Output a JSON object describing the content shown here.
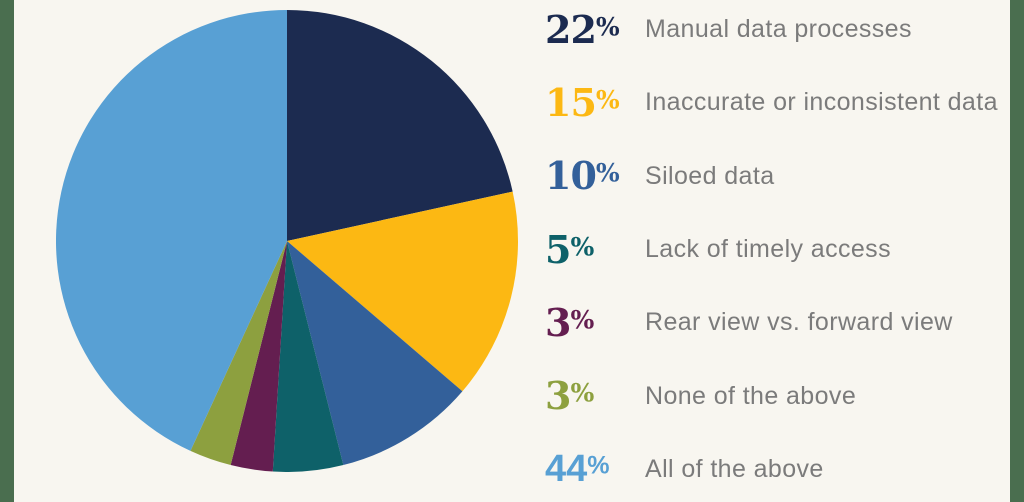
{
  "chart_data": {
    "type": "pie",
    "title": "",
    "start_angle_deg": 0,
    "direction": "clockwise",
    "legend_position": "right",
    "slices": [
      {
        "value": 22,
        "pct_number": "22",
        "pct_sign": "%",
        "label": "Manual data processes",
        "color": "#1C2B50",
        "pct_style": "oldstyle"
      },
      {
        "value": 15,
        "pct_number": "15",
        "pct_sign": "%",
        "label": "Inaccurate or inconsistent data",
        "color": "#FCB813",
        "pct_style": "oldstyle"
      },
      {
        "value": 10,
        "pct_number": "10",
        "pct_sign": "%",
        "label": "Siloed data",
        "color": "#33609A",
        "pct_style": "oldstyle"
      },
      {
        "value": 5,
        "pct_number": "5",
        "pct_sign": "%",
        "label": "Lack of timely access",
        "color": "#0E6169",
        "pct_style": "oldstyle"
      },
      {
        "value": 3,
        "pct_number": "3",
        "pct_sign": "%",
        "label": "Rear view vs. forward view",
        "color": "#641E50",
        "pct_style": "oldstyle"
      },
      {
        "value": 3,
        "pct_number": "3",
        "pct_sign": "%",
        "label": "None of the above",
        "color": "#8DA03F",
        "pct_style": "oldstyle"
      },
      {
        "value": 44,
        "pct_number": "44",
        "pct_sign": "%",
        "label": "All of the above",
        "color": "#58A0D4",
        "pct_style": "rounded"
      }
    ]
  },
  "theme": {
    "background": "#F8F6F0",
    "edge_bar_color": "#4A6E4F",
    "label_color": "#7B7B7B"
  }
}
